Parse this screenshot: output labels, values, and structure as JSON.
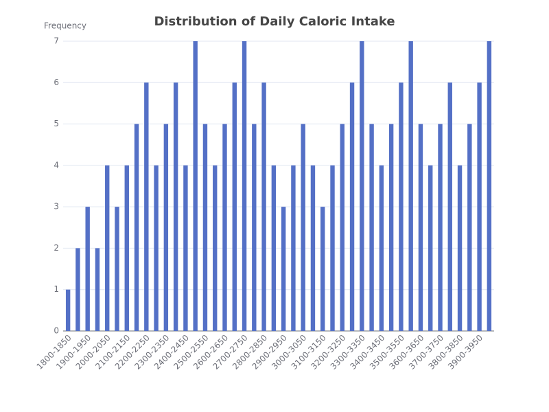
{
  "chart_data": {
    "type": "bar",
    "title": "Distribution of Daily Caloric Intake",
    "y_label": "Frequency",
    "categories": [
      "1800-1850",
      null,
      "1900-1950",
      null,
      "2000-2050",
      null,
      "2100-2150",
      null,
      "2200-2250",
      null,
      "2300-2350",
      null,
      "2400-2450",
      null,
      "2500-2550",
      null,
      "2600-2650",
      null,
      "2700-2750",
      null,
      "2800-2850",
      null,
      "2900-2950",
      null,
      "3000-3050",
      null,
      "3100-3150",
      null,
      "3200-3250",
      null,
      "3300-3350",
      null,
      "3400-3450",
      null,
      "3500-3550",
      null,
      "3600-3650",
      null,
      "3700-3750",
      null,
      "3800-3850",
      null,
      "3900-3950",
      null
    ],
    "values": [
      1,
      2,
      3,
      2,
      4,
      3,
      4,
      5,
      6,
      4,
      5,
      6,
      4,
      7,
      5,
      4,
      5,
      6,
      7,
      5,
      6,
      4,
      3,
      4,
      5,
      4,
      3,
      4,
      5,
      6,
      7,
      5,
      4,
      5,
      6,
      7,
      5,
      4,
      5,
      6,
      4,
      5,
      6,
      7
    ],
    "color": "#5470c6",
    "ylim": [
      0,
      7
    ],
    "yticks": [
      0,
      1,
      2,
      3,
      4,
      5,
      6,
      7
    ],
    "grid": true
  }
}
